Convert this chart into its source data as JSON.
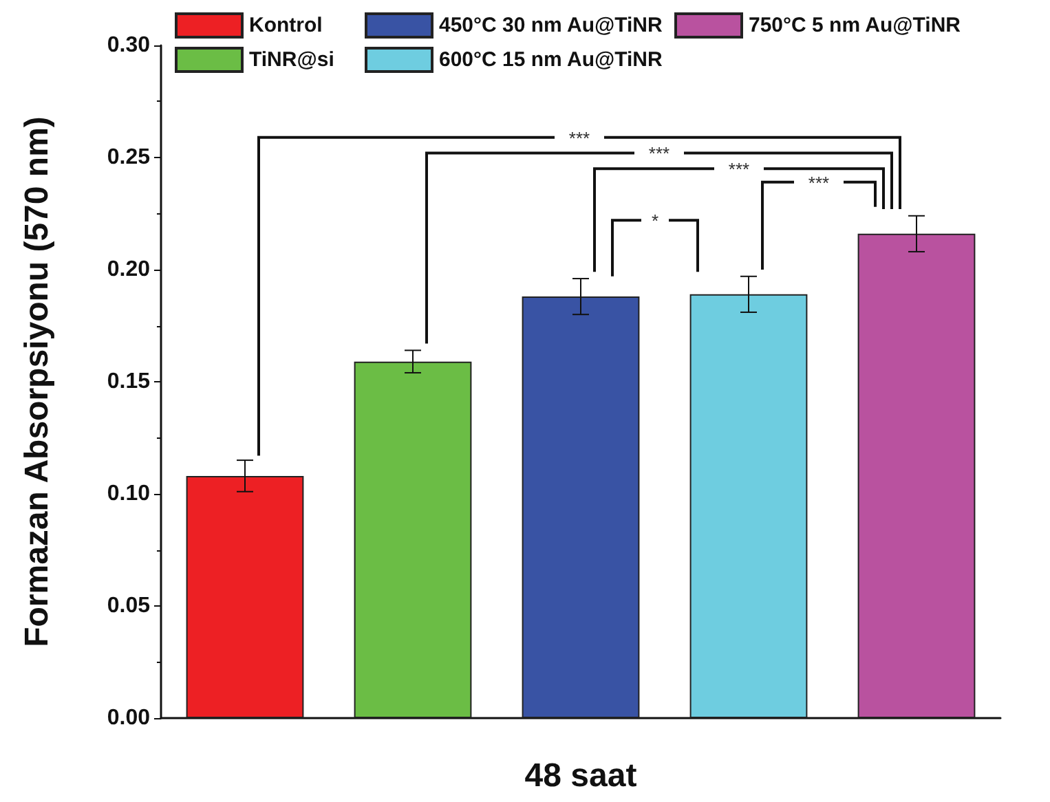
{
  "chart_data": {
    "type": "bar",
    "xlabel": "48 saat",
    "ylabel": "Formazan Absorpsiyonu (570 nm)",
    "categories": [
      null,
      null,
      null,
      null,
      null
    ],
    "series": [
      {
        "name": "Kontrol",
        "color": "#ed2024",
        "values": [
          0.108,
          null,
          null,
          null,
          null
        ],
        "errors": [
          0.007,
          null,
          null,
          null,
          null
        ]
      },
      {
        "name": "TiNR@si",
        "color": "#6bbd45",
        "values": [
          null,
          0.159,
          null,
          null,
          null
        ],
        "errors": [
          null,
          0.005,
          null,
          null,
          null
        ]
      },
      {
        "name": "450°C 30 nm Au@TiNR",
        "color": "#3953a4",
        "values": [
          null,
          null,
          0.188,
          null,
          null
        ],
        "errors": [
          null,
          null,
          0.008,
          null,
          null
        ]
      },
      {
        "name": "600°C 15 nm Au@TiNR",
        "color": "#6ecde0",
        "values": [
          null,
          null,
          null,
          0.189,
          null
        ],
        "errors": [
          null,
          null,
          null,
          0.008,
          null
        ]
      },
      {
        "name": "750°C 5 nm Au@TiNR",
        "color": "#b9529f",
        "values": [
          null,
          null,
          null,
          null,
          0.216
        ],
        "errors": [
          null,
          null,
          null,
          null,
          0.008
        ]
      }
    ],
    "ylim": [
      0,
      0.3
    ],
    "yticks": [
      {
        "value": 0,
        "label": "0.00"
      },
      {
        "value": 0.05,
        "label": "0.05"
      },
      {
        "value": 0.1,
        "label": "0.10"
      },
      {
        "value": 0.15,
        "label": "0.15"
      },
      {
        "value": 0.2,
        "label": "0.20"
      },
      {
        "value": 0.25,
        "label": "0.25"
      },
      {
        "value": 0.3,
        "label": "0.30"
      }
    ],
    "annotations": [
      "***",
      "***",
      "***",
      "***",
      "*"
    ],
    "legend": "top",
    "grid": false
  }
}
